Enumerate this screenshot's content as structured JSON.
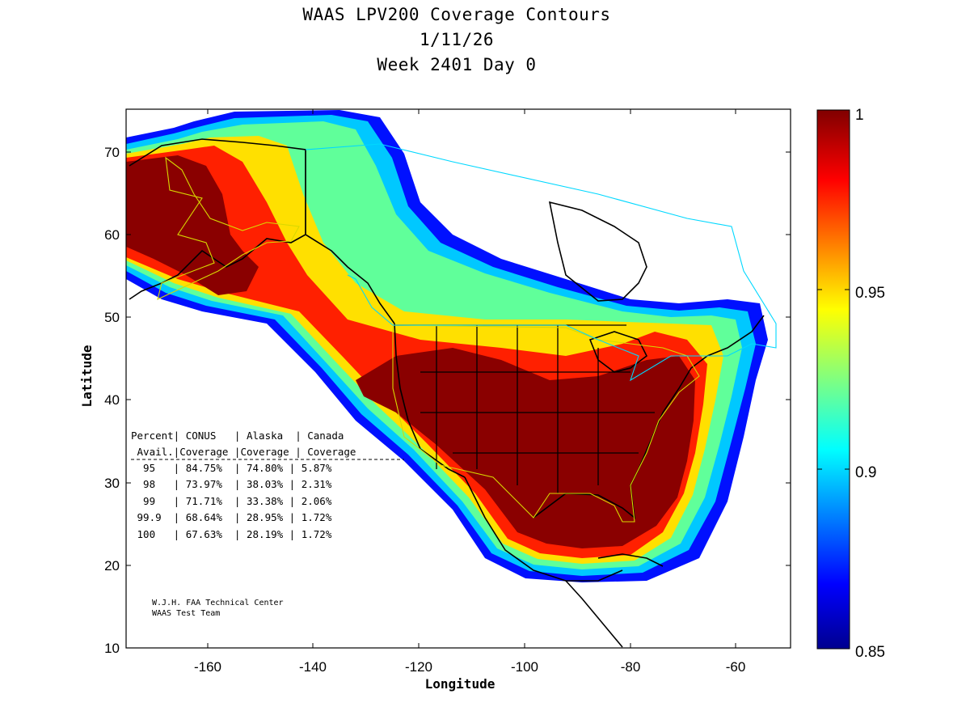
{
  "title": {
    "line1": "WAAS LPV200 Coverage Contours",
    "line2": "1/11/26",
    "line3": "Week 2401 Day 0"
  },
  "axes": {
    "xlabel": "Longitude",
    "ylabel": "Latitude",
    "xticks": [
      "-160",
      "-140",
      "-120",
      "-100",
      "-80",
      "-60"
    ],
    "yticks": [
      "70",
      "60",
      "50",
      "40",
      "30",
      "20",
      "10"
    ],
    "xlim": [
      -175,
      -50
    ],
    "ylim": [
      10,
      75
    ]
  },
  "colorbar": {
    "labels": [
      "1",
      "0.95",
      "0.9",
      "0.85"
    ],
    "range": [
      0.85,
      1.0
    ],
    "colormap": "jet"
  },
  "table": {
    "header1": "Percent| CONUS   | Alaska  | Canada",
    "header2": " Avail.|Coverage |Coverage | Coverage",
    "rows": [
      "  95   | 84.75%  | 74.80% | 5.87%",
      "  98   | 73.97%  | 38.03% | 2.31%",
      "  99   | 71.71%  | 33.38% | 2.06%",
      " 99.9  | 68.64%  | 28.95% | 1.72%",
      " 100   | 67.63%  | 28.19% | 1.72%"
    ]
  },
  "credits": {
    "line1": "W.J.H. FAA Technical Center",
    "line2": "WAAS Test Team"
  },
  "chart_data": {
    "type": "heatmap",
    "title": "WAAS LPV200 Coverage Contours 1/11/26 Week 2401 Day 0",
    "xlabel": "Longitude",
    "ylabel": "Latitude",
    "xlim": [
      -175,
      -50
    ],
    "ylim": [
      10,
      75
    ],
    "zlim": [
      0.85,
      1.0
    ],
    "coverage_table": {
      "columns": [
        "Percent Avail.",
        "CONUS Coverage",
        "Alaska Coverage",
        "Canada Coverage"
      ],
      "rows": [
        [
          "95",
          "84.75%",
          "74.80%",
          "5.87%"
        ],
        [
          "98",
          "73.97%",
          "38.03%",
          "2.31%"
        ],
        [
          "99",
          "71.71%",
          "33.38%",
          "2.06%"
        ],
        [
          "99.9",
          "68.64%",
          "28.95%",
          "1.72%"
        ],
        [
          "100",
          "67.63%",
          "28.19%",
          "1.72%"
        ]
      ]
    }
  }
}
